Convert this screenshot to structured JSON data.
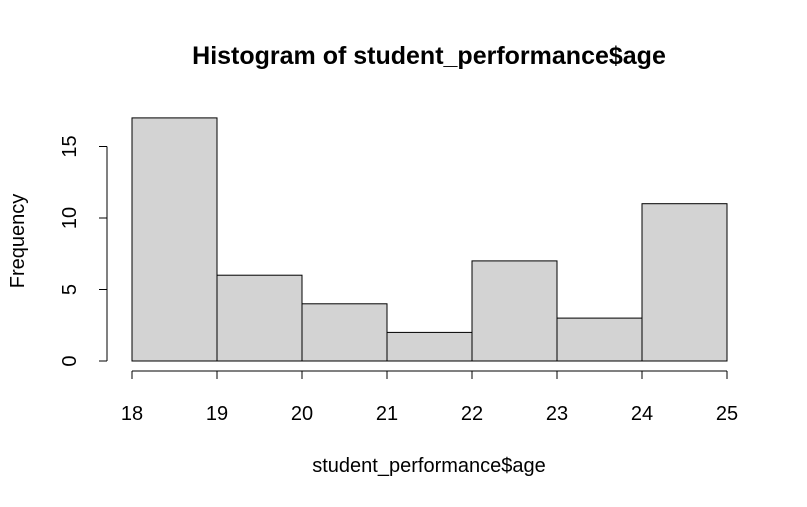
{
  "chart_data": {
    "type": "bar",
    "title": "Histogram of student_performance$age",
    "xlabel": "student_performance$age",
    "ylabel": "Frequency",
    "bins": [
      {
        "from": 18,
        "to": 19,
        "value": 17
      },
      {
        "from": 19,
        "to": 20,
        "value": 6
      },
      {
        "from": 20,
        "to": 21,
        "value": 4
      },
      {
        "from": 21,
        "to": 22,
        "value": 2
      },
      {
        "from": 22,
        "to": 23,
        "value": 7
      },
      {
        "from": 23,
        "to": 24,
        "value": 3
      },
      {
        "from": 24,
        "to": 25,
        "value": 11
      }
    ],
    "xticks": [
      18,
      19,
      20,
      21,
      22,
      23,
      24,
      25
    ],
    "yticks": [
      0,
      5,
      10,
      15
    ],
    "xlim": [
      18,
      25
    ],
    "ylim": [
      0,
      17
    ],
    "grid": false,
    "colors": {
      "bar_fill": "#d3d3d3",
      "bar_stroke": "#000000"
    }
  }
}
